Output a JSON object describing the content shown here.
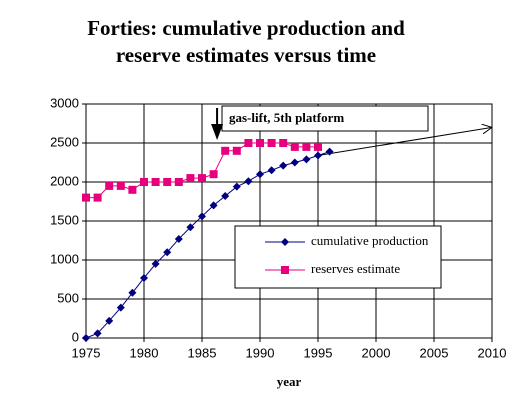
{
  "chart_data": {
    "type": "line",
    "title": [
      "Forties: cumulative production and",
      "reserve estimates versus time"
    ],
    "x_label": "year",
    "annotation": "gas-lift, 5th platform",
    "annotation_x": 1986.3,
    "xlim": [
      1975,
      2010
    ],
    "xticks": [
      1975,
      1980,
      1985,
      1990,
      1995,
      2000,
      2005,
      2010
    ],
    "ylim": [
      0,
      3000
    ],
    "yticks": [
      0,
      500,
      1000,
      1500,
      2000,
      2500,
      3000
    ],
    "grid": true,
    "series": [
      {
        "name": "cumulative production",
        "color": "#000080",
        "marker": "diamond",
        "x": [
          1975,
          1976,
          1977,
          1978,
          1979,
          1980,
          1981,
          1982,
          1983,
          1984,
          1985,
          1986,
          1987,
          1988,
          1989,
          1990,
          1991,
          1992,
          1993,
          1994,
          1995,
          1996
        ],
        "values": [
          0,
          60,
          220,
          390,
          580,
          770,
          950,
          1100,
          1270,
          1420,
          1560,
          1700,
          1820,
          1940,
          2010,
          2100,
          2150,
          2210,
          2250,
          2290,
          2340,
          2390
        ]
      },
      {
        "name": "reserves estimate",
        "color": "#e6007e",
        "marker": "square",
        "x": [
          1975,
          1976,
          1977,
          1978,
          1979,
          1980,
          1981,
          1982,
          1983,
          1984,
          1985,
          1986,
          1987,
          1988,
          1989,
          1990,
          1991,
          1992,
          1993,
          1994,
          1995
        ],
        "values": [
          1800,
          1800,
          1950,
          1950,
          1900,
          2000,
          2000,
          2000,
          2000,
          2050,
          2050,
          2100,
          2400,
          2400,
          2500,
          2500,
          2500,
          2500,
          2450,
          2450,
          2450
        ]
      }
    ],
    "trend": {
      "color": "#000000",
      "x": [
        1995,
        2010
      ],
      "values": [
        2340,
        2700
      ]
    }
  }
}
